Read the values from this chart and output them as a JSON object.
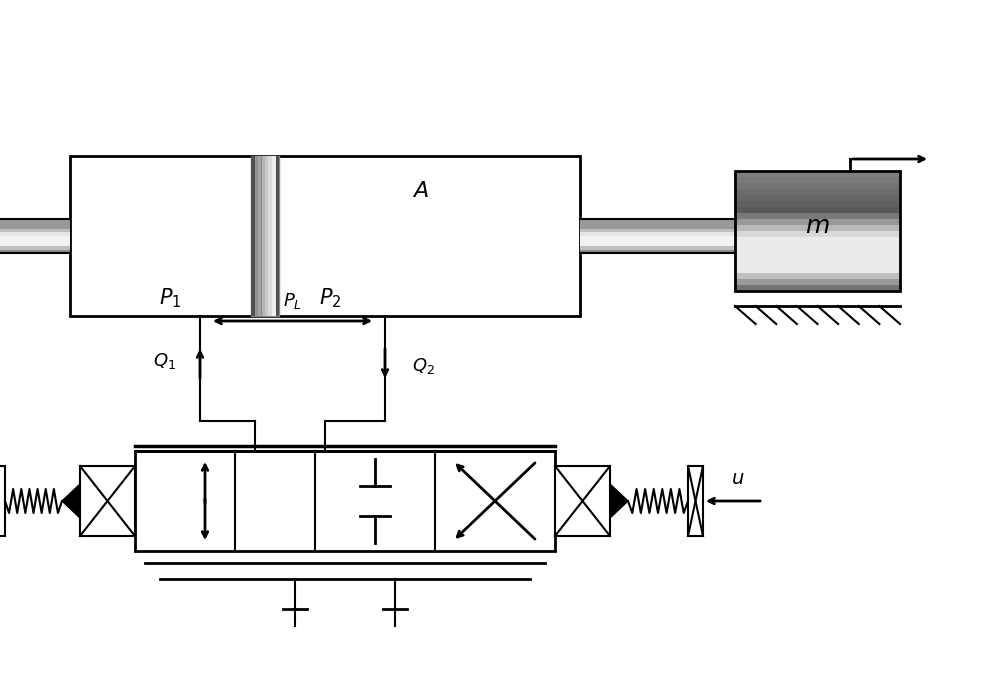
{
  "fig_width": 10.0,
  "fig_height": 6.76,
  "bg_color": "#ffffff",
  "line_color": "#000000",
  "gray_light": "#d0d0d0",
  "gray_mid": "#a0a0a0",
  "gray_dark": "#606060",
  "hatch_color": "#000000"
}
